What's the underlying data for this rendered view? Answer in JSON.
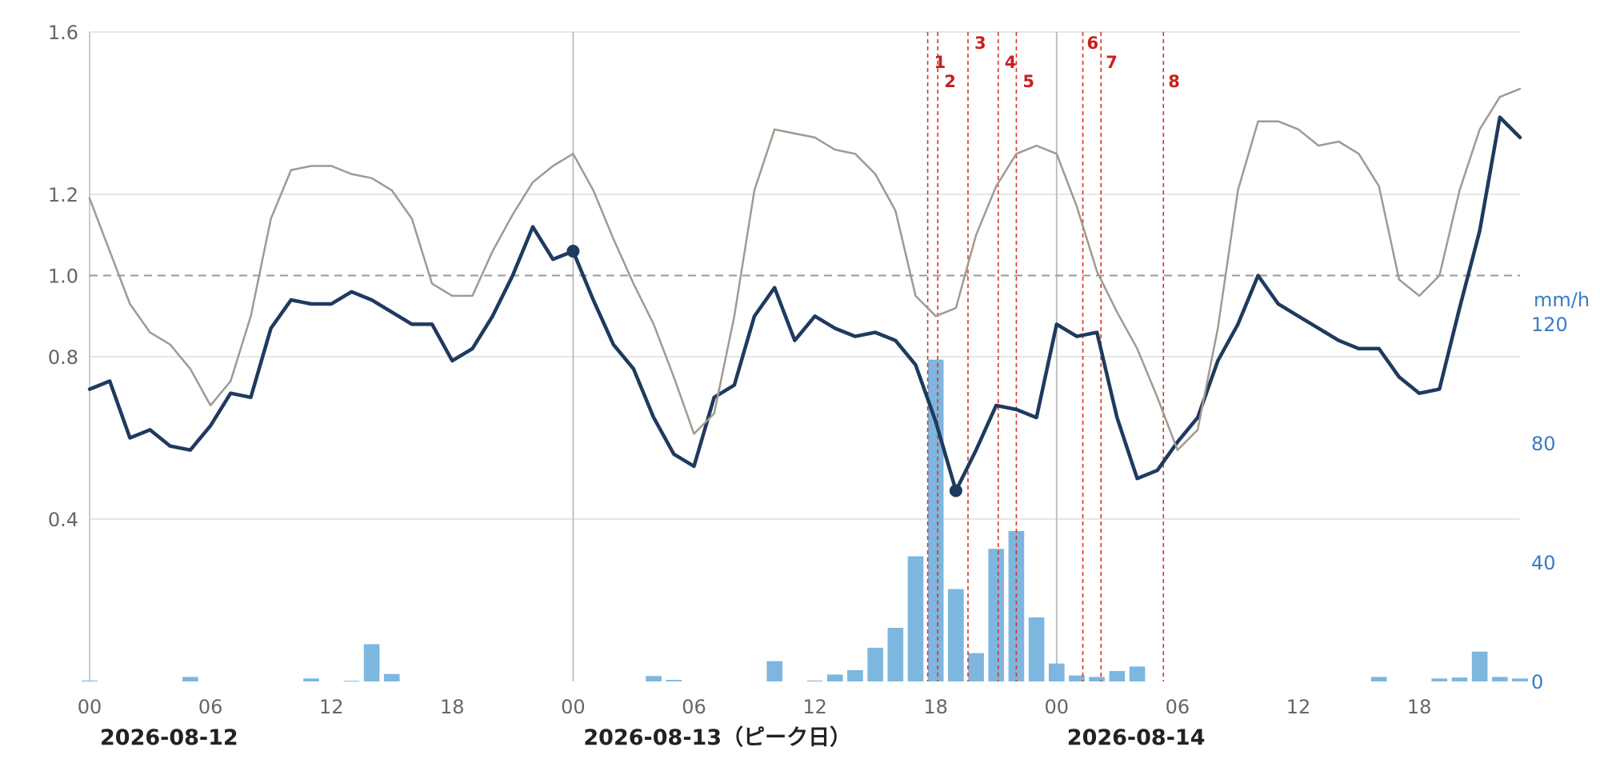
{
  "chart_data": {
    "type": "line",
    "x_axis": {
      "tick_labels": [
        "00",
        "06",
        "12",
        "18",
        "00",
        "06",
        "12",
        "18",
        "00",
        "06",
        "12",
        "18"
      ],
      "tick_hours": [
        0,
        6,
        12,
        18,
        24,
        30,
        36,
        42,
        48,
        54,
        60,
        66
      ],
      "range_hours": [
        0,
        71
      ],
      "date_labels": [
        {
          "hour": 0,
          "text": "2026-08-12"
        },
        {
          "hour": 24,
          "text": "2026-08-13（ピーク日）"
        },
        {
          "hour": 48,
          "text": "2026-08-14"
        }
      ],
      "day_boundaries_hours": [
        24,
        48
      ]
    },
    "y_axis": {
      "range": [
        0,
        1.6
      ],
      "tick_values": [
        0.4,
        0.8,
        1.0,
        1.2,
        1.6
      ],
      "tick_labels": [
        "0.4",
        "0.8",
        "1.0",
        "1.2",
        "1.6"
      ],
      "reference_line": 1.0,
      "grid": true
    },
    "y2_axis": {
      "unit": "mm/h",
      "range": [
        0,
        218
      ],
      "tick_values": [
        0,
        40,
        80,
        120
      ],
      "tick_labels": [
        "0",
        "40",
        "80",
        "120"
      ],
      "color": "#3a7cc4"
    },
    "series": [
      {
        "style": "thick-line",
        "color": "#1f3a5f",
        "values": [
          0.72,
          0.74,
          0.6,
          0.62,
          0.58,
          0.57,
          0.63,
          0.71,
          0.7,
          0.87,
          0.94,
          0.93,
          0.93,
          0.96,
          0.94,
          0.91,
          0.88,
          0.88,
          0.79,
          0.82,
          0.9,
          1.0,
          1.12,
          1.04,
          1.06,
          0.94,
          0.83,
          0.77,
          0.65,
          0.56,
          0.53,
          0.7,
          0.73,
          0.9,
          0.97,
          0.84,
          0.9,
          0.87,
          0.85,
          0.86,
          0.84,
          0.78,
          0.64,
          0.47,
          0.57,
          0.68,
          0.67,
          0.65,
          0.88,
          0.85,
          0.86,
          0.65,
          0.5,
          0.52,
          0.59,
          0.65,
          0.79,
          0.88,
          1.0,
          0.93,
          0.9,
          0.87,
          0.84,
          0.82,
          0.82,
          0.75,
          0.71,
          0.72,
          0.92,
          1.11,
          1.39,
          1.34
        ],
        "markers": [
          {
            "hour": 24,
            "value": 1.06
          },
          {
            "hour": 43,
            "value": 0.47
          }
        ]
      },
      {
        "style": "thin-line",
        "color": "#a09a90",
        "values": [
          1.19,
          1.06,
          0.93,
          0.86,
          0.83,
          0.77,
          0.68,
          0.74,
          0.9,
          1.14,
          1.26,
          1.27,
          1.27,
          1.25,
          1.24,
          1.21,
          1.14,
          0.98,
          0.95,
          0.95,
          1.06,
          1.15,
          1.23,
          1.27,
          1.3,
          1.21,
          1.09,
          0.98,
          0.88,
          0.75,
          0.61,
          0.66,
          0.9,
          1.21,
          1.36,
          1.35,
          1.34,
          1.31,
          1.3,
          1.25,
          1.16,
          0.95,
          0.9,
          0.92,
          1.1,
          1.22,
          1.3,
          1.32,
          1.3,
          1.17,
          1.01,
          0.91,
          0.82,
          0.7,
          0.57,
          0.62,
          0.87,
          1.21,
          1.38,
          1.38,
          1.36,
          1.32,
          1.33,
          1.3,
          1.22,
          0.99,
          0.95,
          1.0,
          1.21,
          1.36,
          1.44,
          1.46
        ]
      },
      {
        "type": "bar",
        "axis": "y2",
        "color": "#7db6df",
        "values": [
          0.3,
          0,
          0,
          0,
          0,
          1.5,
          0,
          0,
          0,
          0,
          0,
          1,
          0,
          0.2,
          12.5,
          2.5,
          0,
          0,
          0,
          0,
          0,
          0,
          0,
          0,
          0,
          0,
          0,
          0,
          1.8,
          0.5,
          0,
          0,
          0,
          0,
          6.8,
          0,
          0.3,
          2.3,
          3.8,
          11.3,
          18,
          42,
          108,
          31,
          9.5,
          44.5,
          50.5,
          21.5,
          6,
          2,
          1.5,
          3.5,
          5,
          0,
          0,
          0,
          0,
          0,
          0,
          0,
          0,
          0,
          0,
          0,
          1.5,
          0,
          0,
          1,
          1.3,
          10,
          1.5,
          1
        ]
      }
    ],
    "event_markers": [
      {
        "label": "1",
        "hour": 41.6
      },
      {
        "label": "2",
        "hour": 42.1
      },
      {
        "label": "3",
        "hour": 43.6
      },
      {
        "label": "4",
        "hour": 45.1
      },
      {
        "label": "5",
        "hour": 46.0
      },
      {
        "label": "6",
        "hour": 49.3
      },
      {
        "label": "7",
        "hour": 50.2
      },
      {
        "label": "8",
        "hour": 53.3
      }
    ],
    "colors": {
      "grid": "#dddddd",
      "reference_line": "#999999",
      "day_boundary": "#bbbbbb",
      "event_marker": "#d9342b",
      "event_label": "#c8201e"
    }
  }
}
